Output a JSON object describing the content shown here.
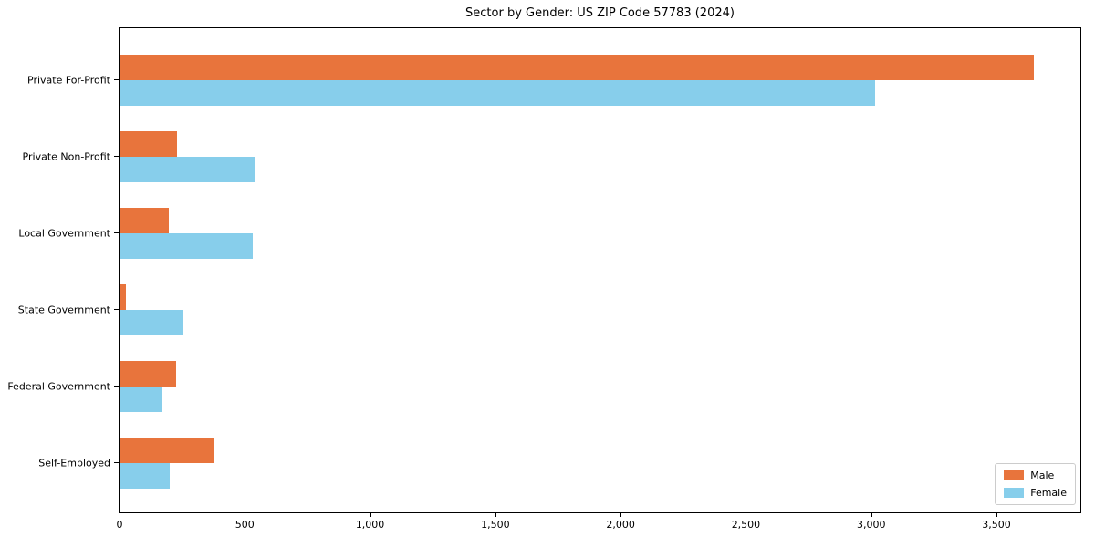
{
  "chart_data": {
    "type": "bar",
    "orientation": "horizontal",
    "title": "Sector by Gender: US ZIP Code 57783 (2024)",
    "categories": [
      "Private For-Profit",
      "Private Non-Profit",
      "Local Government",
      "State Government",
      "Federal Government",
      "Self-Employed"
    ],
    "series": [
      {
        "name": "Male",
        "color": "#E8743C",
        "values": [
          3650,
          230,
          195,
          25,
          225,
          380
        ]
      },
      {
        "name": "Female",
        "color": "#87CEEB",
        "values": [
          3015,
          540,
          530,
          255,
          170,
          200
        ]
      }
    ],
    "xlabel": "",
    "ylabel": "",
    "xlim": [
      0,
      3835
    ],
    "xticks": [
      0,
      500,
      1000,
      1500,
      2000,
      2500,
      3000,
      3500
    ],
    "xtick_labels": [
      "0",
      "500",
      "1,000",
      "1,500",
      "2,000",
      "2,500",
      "3,000",
      "3,500"
    ],
    "grid": false,
    "legend": {
      "position": "lower right"
    }
  },
  "colors": {
    "background": "#ffffff",
    "spine": "#000000",
    "legend_border": "#cccccc",
    "text": "#000000"
  }
}
